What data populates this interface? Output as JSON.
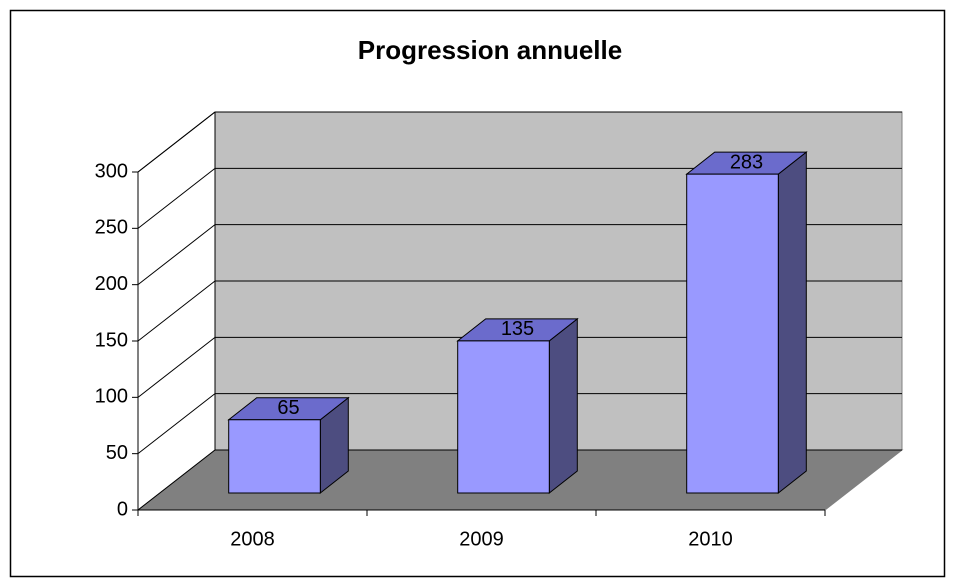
{
  "chart_data": {
    "type": "bar3d",
    "title": "Progression annuelle",
    "categories": [
      "2008",
      "2009",
      "2010"
    ],
    "values": [
      65,
      135,
      283
    ],
    "color": "#9999ff",
    "ylim": [
      0,
      300
    ],
    "yticks": [
      0,
      50,
      100,
      150,
      200,
      250,
      300
    ],
    "grid": true
  }
}
